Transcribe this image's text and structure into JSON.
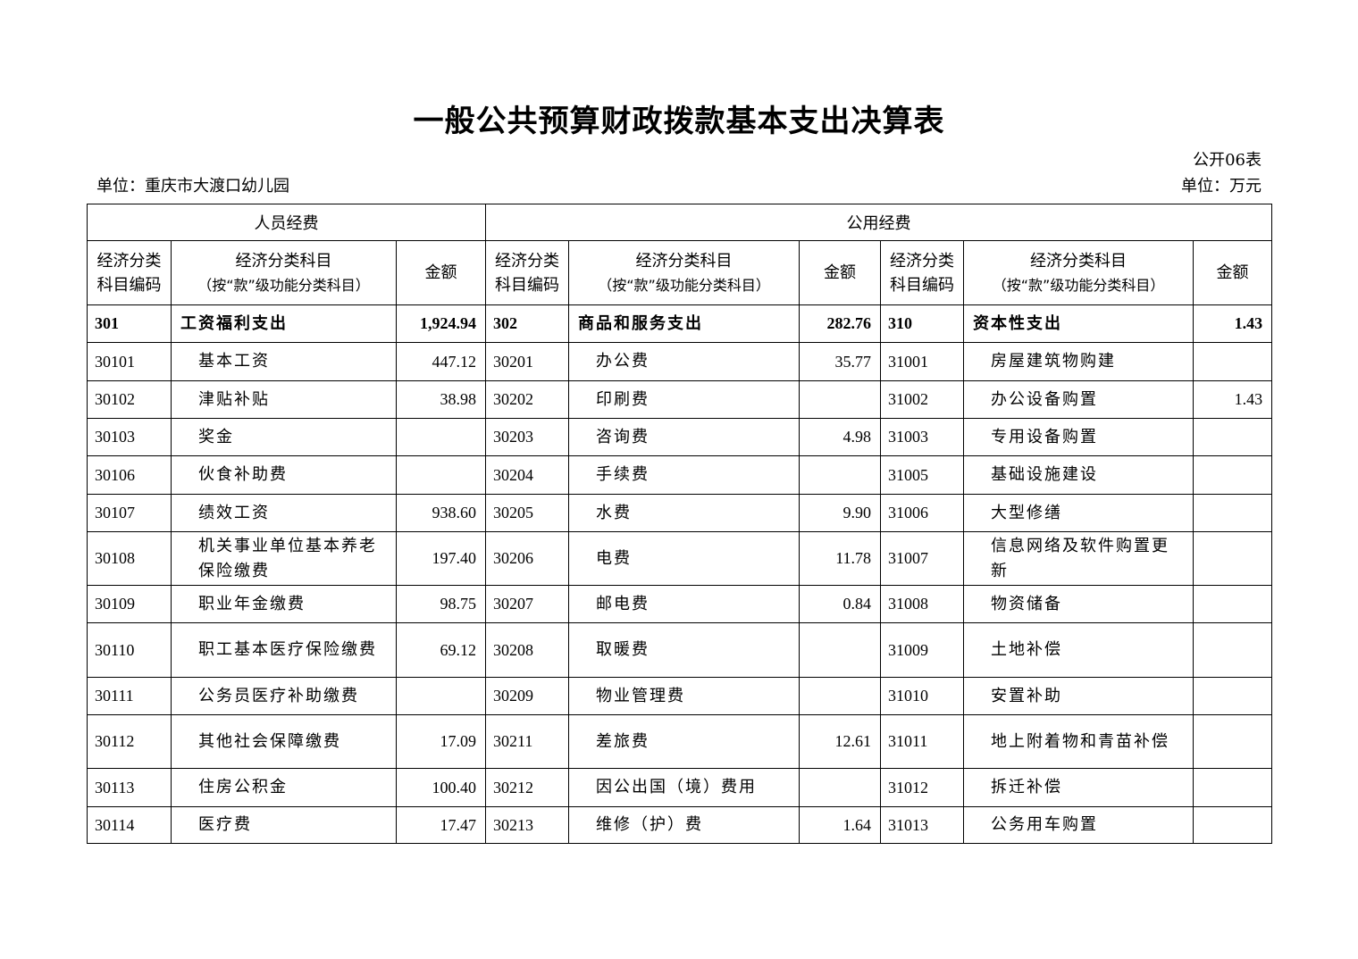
{
  "title": "一般公共预算财政拨款基本支出决算表",
  "form_no": "公开06表",
  "unit_org": "单位：重庆市大渡口幼儿园",
  "unit_currency": "单位：万元",
  "groups": {
    "personnel": "人员经费",
    "public": "公用经费"
  },
  "headers": {
    "code": "经济分类科目编码",
    "code_line1": "经济分类",
    "code_line2": "科目编码",
    "name_line1": "经济分类科目",
    "name_line2": "（按“款”级功能分类科目）",
    "amount": "金额"
  },
  "summary": [
    {
      "code": "301",
      "name": "工资福利支出",
      "amount": "1,924.94"
    },
    {
      "code": "302",
      "name": "商品和服务支出",
      "amount": "282.76"
    },
    {
      "code": "310",
      "name": "资本性支出",
      "amount": "1.43"
    }
  ],
  "rows": [
    [
      [
        "30101",
        "基本工资",
        "447.12"
      ],
      [
        "30201",
        "办公费",
        "35.77"
      ],
      [
        "31001",
        "房屋建筑物购建",
        ""
      ]
    ],
    [
      [
        "30102",
        "津贴补贴",
        "38.98"
      ],
      [
        "30202",
        "印刷费",
        ""
      ],
      [
        "31002",
        "办公设备购置",
        "1.43"
      ]
    ],
    [
      [
        "30103",
        "奖金",
        ""
      ],
      [
        "30203",
        "咨询费",
        "4.98"
      ],
      [
        "31003",
        "专用设备购置",
        ""
      ]
    ],
    [
      [
        "30106",
        "伙食补助费",
        ""
      ],
      [
        "30204",
        "手续费",
        ""
      ],
      [
        "31005",
        "基础设施建设",
        ""
      ]
    ],
    [
      [
        "30107",
        "绩效工资",
        "938.60"
      ],
      [
        "30205",
        "水费",
        "9.90"
      ],
      [
        "31006",
        "大型修缮",
        ""
      ]
    ],
    [
      [
        "30108",
        "机关事业单位基本养老保险缴费",
        "197.40"
      ],
      [
        "30206",
        "电费",
        "11.78"
      ],
      [
        "31007",
        "信息网络及软件购置更新",
        ""
      ]
    ],
    [
      [
        "30109",
        "职业年金缴费",
        "98.75"
      ],
      [
        "30207",
        "邮电费",
        "0.84"
      ],
      [
        "31008",
        "物资储备",
        ""
      ]
    ],
    [
      [
        "30110",
        "职工基本医疗保险缴费",
        "69.12"
      ],
      [
        "30208",
        "取暖费",
        ""
      ],
      [
        "31009",
        "土地补偿",
        ""
      ]
    ],
    [
      [
        "30111",
        "公务员医疗补助缴费",
        ""
      ],
      [
        "30209",
        "物业管理费",
        ""
      ],
      [
        "31010",
        "安置补助",
        ""
      ]
    ],
    [
      [
        "30112",
        "其他社会保障缴费",
        "17.09"
      ],
      [
        "30211",
        "差旅费",
        "12.61"
      ],
      [
        "31011",
        "地上附着物和青苗补偿",
        ""
      ]
    ],
    [
      [
        "30113",
        "住房公积金",
        "100.40"
      ],
      [
        "30212",
        "因公出国（境）费用",
        ""
      ],
      [
        "31012",
        "拆迁补偿",
        ""
      ]
    ],
    [
      [
        "30114",
        "医疗费",
        "17.47"
      ],
      [
        "30213",
        "维修（护）费",
        "1.64"
      ],
      [
        "31013",
        "公务用车购置",
        ""
      ]
    ]
  ]
}
